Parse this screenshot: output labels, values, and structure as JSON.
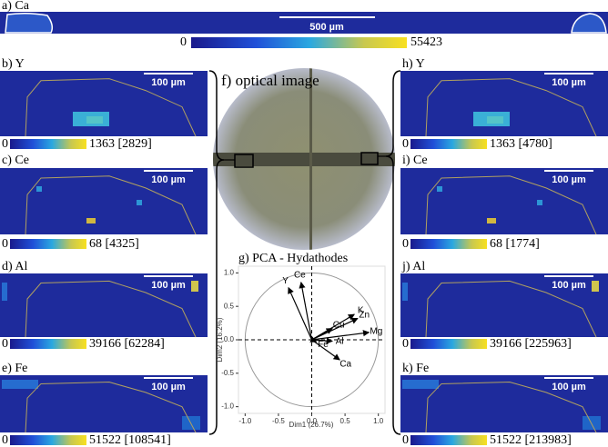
{
  "figure": {
    "overview": {
      "label": "a) Ca",
      "scale_bar": "500 µm",
      "colorbar_min": 0,
      "colorbar_max": 55423
    },
    "left_panels": [
      {
        "label": "b) Y",
        "scale_bar": "100 µm",
        "colorbar_min": 0,
        "colorbar_max": "1363 [2829]"
      },
      {
        "label": "c) Ce",
        "scale_bar": "100 µm",
        "colorbar_min": 0,
        "colorbar_max": "68 [4325]"
      },
      {
        "label": "d) Al",
        "scale_bar": "100 µm",
        "colorbar_min": 0,
        "colorbar_max": "39166 [62284]"
      },
      {
        "label": "e) Fe",
        "scale_bar": "100 µm",
        "colorbar_min": 0,
        "colorbar_max": "51522 [108541]"
      }
    ],
    "right_panels": [
      {
        "label": "h) Y",
        "scale_bar": "100 µm",
        "colorbar_min": 0,
        "colorbar_max": "1363 [4780]"
      },
      {
        "label": "i) Ce",
        "scale_bar": "100 µm",
        "colorbar_min": 0,
        "colorbar_max": "68 [1774]"
      },
      {
        "label": "j) Al",
        "scale_bar": "100 µm",
        "colorbar_min": 0,
        "colorbar_max": "39166 [225963]"
      },
      {
        "label": "k) Fe",
        "scale_bar": "100 µm",
        "colorbar_min": 0,
        "colorbar_max": "51522 [213983]"
      }
    ],
    "optical": {
      "title": "f) optical image"
    },
    "pca": {
      "title": "g) PCA - Hydathodes",
      "x_label": "Dim1 (26.7%)",
      "y_label": "Dim2 (16.2%)",
      "xlim": [
        -1.1,
        1.1
      ],
      "ylim": [
        -1.1,
        1.1
      ],
      "xticks": [
        {
          "value": -1,
          "label": "-1.0"
        },
        {
          "value": -0.5,
          "label": "-0.5"
        },
        {
          "value": 0,
          "label": "0.0"
        },
        {
          "value": 0.5,
          "label": "0.5"
        },
        {
          "value": 1,
          "label": "1.0"
        }
      ],
      "yticks": [
        {
          "value": -1,
          "label": "-1.0"
        },
        {
          "value": -0.5,
          "label": "-0.5"
        },
        {
          "value": 0,
          "label": "0.0"
        },
        {
          "value": 0.5,
          "label": "0.5"
        },
        {
          "value": 1,
          "label": "1.0"
        }
      ],
      "variables": [
        {
          "name": "Y",
          "x": -0.35,
          "y": 0.78
        },
        {
          "name": "Ce",
          "x": -0.16,
          "y": 0.86
        },
        {
          "name": "Cu",
          "x": 0.31,
          "y": 0.17
        },
        {
          "name": "K",
          "x": 0.64,
          "y": 0.38
        },
        {
          "name": "Zn",
          "x": 0.69,
          "y": 0.32
        },
        {
          "name": "Mg",
          "x": 0.86,
          "y": 0.11
        },
        {
          "name": "Fe",
          "x": 0.07,
          "y": -0.03
        },
        {
          "name": "Al",
          "x": 0.31,
          "y": -0.02
        },
        {
          "name": "Ca",
          "x": 0.42,
          "y": -0.3
        }
      ]
    }
  }
}
